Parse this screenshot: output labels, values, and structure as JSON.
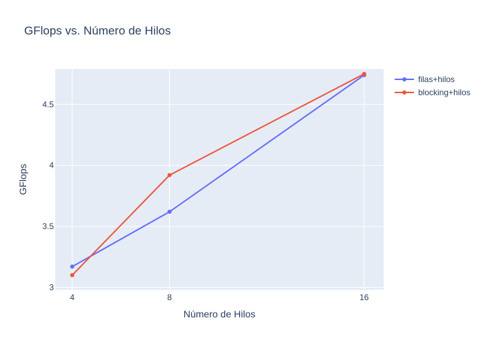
{
  "chart_data": {
    "type": "line",
    "title": "GFlops vs. Número de Hilos",
    "xlabel": "Número de Hilos",
    "ylabel": "GFlops",
    "x": [
      4,
      8,
      16
    ],
    "x_tick_labels": [
      "4",
      "8",
      "16"
    ],
    "xlim": [
      3.3,
      16.8
    ],
    "ylim": [
      2.98,
      4.79
    ],
    "y_ticks": [
      3,
      3.5,
      4,
      4.5
    ],
    "y_tick_labels": [
      "3",
      "3.5",
      "4",
      "4.5"
    ],
    "grid": true,
    "legend_position": "top-right",
    "colors": {
      "plot_background": "#e5ecf6",
      "grid": "#ffffff",
      "text": "#2a3f5f"
    },
    "series": [
      {
        "name": "filas+hilos",
        "color": "#636efa",
        "values": [
          3.17,
          3.62,
          4.74
        ]
      },
      {
        "name": "blocking+hilos",
        "color": "#ef553b",
        "values": [
          3.1,
          3.92,
          4.75
        ]
      }
    ]
  }
}
